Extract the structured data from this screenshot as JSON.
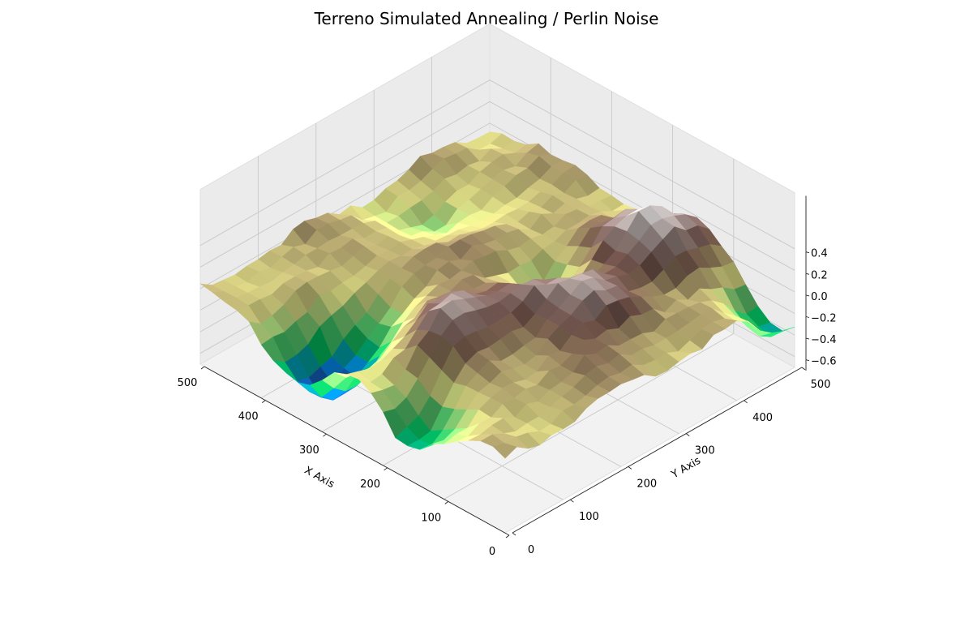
{
  "chart_data": {
    "type": "surface",
    "title": "Terreno Simulated Annealing / Perlin Noise",
    "xlabel": "X Axis",
    "ylabel": "Y Axis",
    "zlabel": "",
    "xlim": [
      0,
      500
    ],
    "ylim": [
      0,
      500
    ],
    "zlim": [
      -0.7,
      0.5
    ],
    "xticks": [
      "0",
      "100",
      "200",
      "300",
      "400",
      "500"
    ],
    "yticks": [
      "0",
      "100",
      "200",
      "300",
      "400",
      "500"
    ],
    "zticks": [
      "−0.6",
      "−0.4",
      "−0.2",
      "0.0",
      "0.2",
      "0.4"
    ],
    "zvalues": [
      -0.6,
      -0.4,
      -0.2,
      0.0,
      0.2,
      0.4
    ],
    "colormap": "terrain",
    "grid": true,
    "grid_points": [
      26,
      26
    ],
    "z_value_range": [
      -0.63,
      0.43
    ],
    "features": [
      {
        "x": 160,
        "y": 440,
        "z": 0.43
      },
      {
        "x": 200,
        "y": 405,
        "z": 0.3
      },
      {
        "x": 140,
        "y": 300,
        "z": 0.33
      },
      {
        "x": 190,
        "y": 240,
        "z": 0.3
      },
      {
        "x": 250,
        "y": 135,
        "z": 0.3
      },
      {
        "x": 300,
        "y": 300,
        "z": 0.25
      },
      {
        "x": 200,
        "y": 120,
        "z": 0.3
      },
      {
        "x": 380,
        "y": 200,
        "z": 0.15
      },
      {
        "x": 80,
        "y": 220,
        "z": 0.2
      },
      {
        "x": 340,
        "y": 40,
        "z": -0.63
      },
      {
        "x": 160,
        "y": 20,
        "z": -0.45
      },
      {
        "x": 250,
        "y": 330,
        "z": -0.3
      },
      {
        "x": 320,
        "y": 120,
        "z": -0.3
      },
      {
        "x": 420,
        "y": 310,
        "z": -0.2
      },
      {
        "x": 30,
        "y": 490,
        "z": -0.4
      }
    ]
  }
}
